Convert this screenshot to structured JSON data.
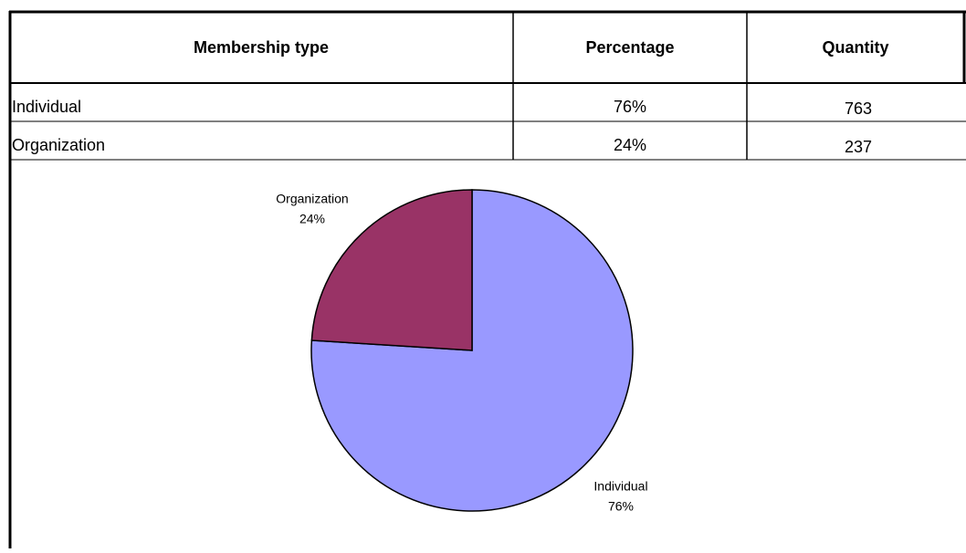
{
  "table": {
    "header": [
      "Membership type",
      "Percentage",
      "Quantity"
    ],
    "rows": [
      [
        "Individual",
        "76%",
        "763"
      ],
      [
        "Organization",
        "24%",
        "237"
      ]
    ]
  },
  "chart_data": {
    "type": "pie",
    "categories": [
      "Individual",
      "Organization"
    ],
    "values": [
      76,
      24
    ],
    "value_labels": [
      "76%",
      "24%"
    ],
    "colors": [
      "#9999ff",
      "#993366"
    ]
  }
}
